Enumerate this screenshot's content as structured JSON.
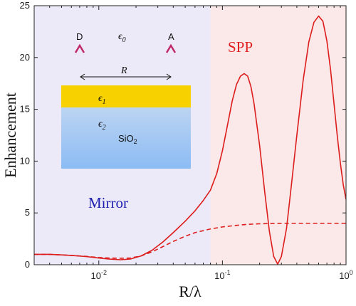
{
  "chart_data": {
    "type": "line",
    "xlabel": "R/λ",
    "ylabel": "Enhancement",
    "x_scale": "log",
    "xlim": [
      0.003,
      1
    ],
    "ylim": [
      0,
      25
    ],
    "x_ticks": [
      {
        "value": 0.01,
        "label": "10",
        "exp": "-2"
      },
      {
        "value": 0.1,
        "label": "10",
        "exp": "-1"
      },
      {
        "value": 1,
        "label": "10",
        "exp": "0"
      }
    ],
    "y_ticks": [
      0,
      5,
      10,
      15,
      20,
      25
    ],
    "regions": [
      {
        "label": "Mirror",
        "x_range": [
          0.003,
          0.08
        ],
        "fill": "#eceaf8",
        "label_color": "#2020b0"
      },
      {
        "label": "SPP",
        "x_range": [
          0.08,
          1
        ],
        "fill": "#fbe8e8",
        "label_color": "#e02020"
      }
    ],
    "series": [
      {
        "style": "solid",
        "color": "#dd1c1c",
        "points": [
          [
            0.003,
            1.0
          ],
          [
            0.004,
            1.0
          ],
          [
            0.005,
            0.95
          ],
          [
            0.006,
            0.9
          ],
          [
            0.008,
            0.78
          ],
          [
            0.01,
            0.65
          ],
          [
            0.012,
            0.55
          ],
          [
            0.015,
            0.48
          ],
          [
            0.018,
            0.55
          ],
          [
            0.022,
            0.85
          ],
          [
            0.027,
            1.4
          ],
          [
            0.033,
            2.2
          ],
          [
            0.04,
            3.1
          ],
          [
            0.05,
            4.2
          ],
          [
            0.06,
            5.2
          ],
          [
            0.07,
            6.2
          ],
          [
            0.08,
            7.2
          ],
          [
            0.09,
            8.8
          ],
          [
            0.1,
            11.0
          ],
          [
            0.11,
            13.5
          ],
          [
            0.12,
            15.8
          ],
          [
            0.13,
            17.4
          ],
          [
            0.14,
            18.2
          ],
          [
            0.15,
            18.45
          ],
          [
            0.16,
            18.2
          ],
          [
            0.17,
            17.2
          ],
          [
            0.18,
            15.6
          ],
          [
            0.2,
            11.5
          ],
          [
            0.22,
            7.0
          ],
          [
            0.24,
            3.2
          ],
          [
            0.26,
            0.8
          ],
          [
            0.28,
            0.05
          ],
          [
            0.3,
            0.8
          ],
          [
            0.33,
            3.5
          ],
          [
            0.36,
            7.5
          ],
          [
            0.4,
            12.5
          ],
          [
            0.45,
            17.8
          ],
          [
            0.5,
            21.5
          ],
          [
            0.55,
            23.4
          ],
          [
            0.6,
            24.0
          ],
          [
            0.65,
            23.5
          ],
          [
            0.7,
            21.6
          ],
          [
            0.75,
            18.8
          ],
          [
            0.8,
            15.5
          ],
          [
            0.85,
            12.4
          ],
          [
            0.9,
            9.8
          ],
          [
            0.95,
            7.7
          ],
          [
            1.0,
            6.3
          ]
        ]
      },
      {
        "style": "dashed",
        "color": "#dd1c1c",
        "points": [
          [
            0.003,
            1.0
          ],
          [
            0.004,
            1.0
          ],
          [
            0.005,
            0.95
          ],
          [
            0.006,
            0.9
          ],
          [
            0.008,
            0.8
          ],
          [
            0.01,
            0.7
          ],
          [
            0.012,
            0.65
          ],
          [
            0.015,
            0.62
          ],
          [
            0.018,
            0.65
          ],
          [
            0.022,
            0.85
          ],
          [
            0.027,
            1.25
          ],
          [
            0.033,
            1.75
          ],
          [
            0.04,
            2.25
          ],
          [
            0.05,
            2.75
          ],
          [
            0.06,
            3.1
          ],
          [
            0.08,
            3.45
          ],
          [
            0.1,
            3.65
          ],
          [
            0.13,
            3.8
          ],
          [
            0.16,
            3.9
          ],
          [
            0.2,
            3.95
          ],
          [
            0.3,
            4.0
          ],
          [
            0.5,
            4.0
          ],
          [
            0.7,
            4.0
          ],
          [
            1.0,
            4.0
          ]
        ]
      }
    ]
  },
  "inset": {
    "donor_label": "D",
    "acceptor_label": "A",
    "eps0_base": "ϵ",
    "eps0_sub": "0",
    "eps1_base": "ϵ",
    "eps1_sub": "1",
    "eps2_base": "ϵ",
    "eps2_sub": "2",
    "separation_label": "R",
    "substrate_base": "SiO",
    "substrate_sub": "2",
    "arrow_top_color": "#c0286a",
    "arrow_bottom_color": "#3355cc",
    "gold_color": "#f8d200",
    "silica_top_color": "#bcd4f2",
    "silica_bottom_color": "#8cbcf4"
  }
}
